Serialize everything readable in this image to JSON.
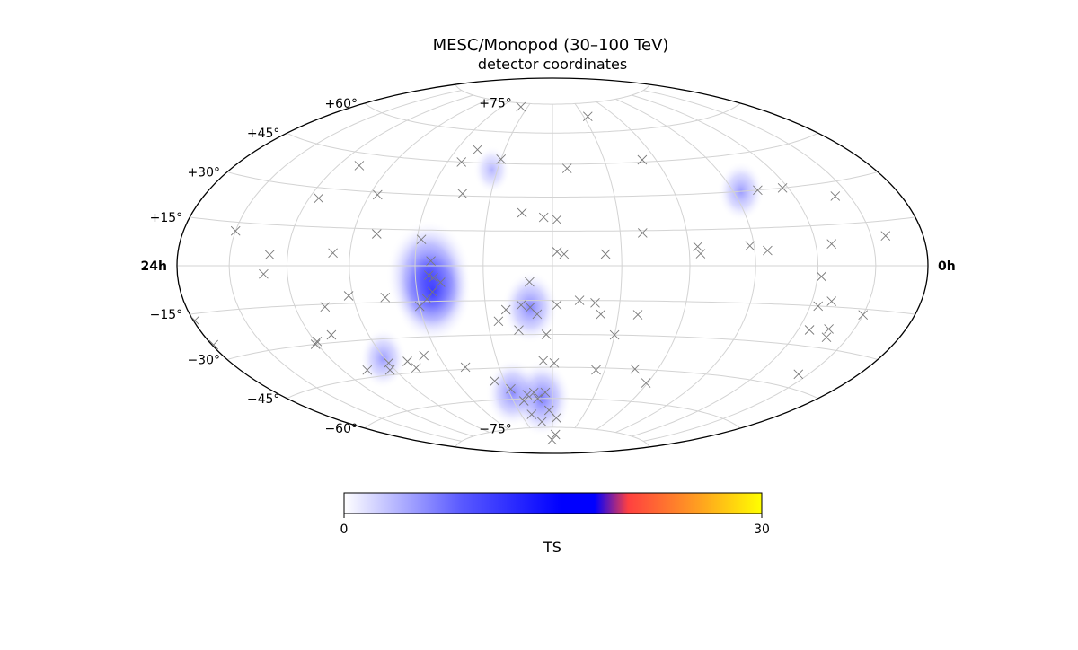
{
  "chart_data": {
    "type": "heatmap",
    "projection": "hammer-aitoff",
    "title": "MESC/Monopod (30–100 TeV)",
    "subtitle": "detector coordinates",
    "ra_labels": {
      "left": "24h",
      "right": "0h"
    },
    "dec_labels": [
      {
        "dec": 75,
        "text": "+75°"
      },
      {
        "dec": 60,
        "text": "+60°"
      },
      {
        "dec": 45,
        "text": "+45°"
      },
      {
        "dec": 30,
        "text": "+30°"
      },
      {
        "dec": 15,
        "text": "+15°"
      },
      {
        "dec": -15,
        "text": "−15°"
      },
      {
        "dec": -30,
        "text": "−30°"
      },
      {
        "dec": -45,
        "text": "−45°"
      },
      {
        "dec": -60,
        "text": "−60°"
      },
      {
        "dec": -75,
        "text": "−75°"
      }
    ],
    "grid": true,
    "colorbar": {
      "label": "TS",
      "min": 0,
      "max": 30,
      "tick_labels": [
        "0",
        "30"
      ],
      "colors": [
        "#ffffff",
        "#5a5aff",
        "#0000ff",
        "#ff4040",
        "#ffa020",
        "#ffff00"
      ]
    },
    "hotspots": [
      {
        "lon": 54,
        "lat": -4,
        "ts": 9.5
      },
      {
        "lon": 53,
        "lat": -11,
        "ts": 8.5
      },
      {
        "lon": 10,
        "lat": -18,
        "ts": 5
      },
      {
        "lon": 8,
        "lat": -60,
        "ts": 5.5
      },
      {
        "lon": 28,
        "lat": -57,
        "ts": 4.5
      },
      {
        "lon": 91,
        "lat": -38,
        "ts": 3.5
      },
      {
        "lon": -94,
        "lat": 30,
        "ts": 3.5
      },
      {
        "lon": 33,
        "lat": 42,
        "ts": 2
      }
    ],
    "events": [
      {
        "lon": 38,
        "lat": 73
      },
      {
        "lon": -34,
        "lat": 68
      },
      {
        "lon": 47,
        "lat": 51
      },
      {
        "lon": 30,
        "lat": 47
      },
      {
        "lon": 52,
        "lat": 45
      },
      {
        "lon": -8,
        "lat": 43
      },
      {
        "lon": -52,
        "lat": 46
      },
      {
        "lon": 108,
        "lat": 40
      },
      {
        "lon": 44,
        "lat": 31
      },
      {
        "lon": 86,
        "lat": 29
      },
      {
        "lon": 4,
        "lat": 21
      },
      {
        "lon": 14,
        "lat": 23
      },
      {
        "lon": -2,
        "lat": 20
      },
      {
        "lon": 115,
        "lat": 26
      },
      {
        "lon": 150,
        "lat": 12
      },
      {
        "lon": 79,
        "lat": 13
      },
      {
        "lon": 58,
        "lat": 11
      },
      {
        "lon": 129,
        "lat": 4
      },
      {
        "lon": 98,
        "lat": 5
      },
      {
        "lon": 53,
        "lat": 2
      },
      {
        "lon": -2,
        "lat": 6
      },
      {
        "lon": -5,
        "lat": 5
      },
      {
        "lon": -23,
        "lat": 5
      },
      {
        "lon": -40,
        "lat": 14
      },
      {
        "lon": -64,
        "lat": 8
      },
      {
        "lon": -65,
        "lat": 5
      },
      {
        "lon": -88,
        "lat": 8
      },
      {
        "lon": -96,
        "lat": 6
      },
      {
        "lon": -128,
        "lat": 8
      },
      {
        "lon": -158,
        "lat": 10
      },
      {
        "lon": -117,
        "lat": 30
      },
      {
        "lon": -103,
        "lat": 30
      },
      {
        "lon": -142,
        "lat": 25
      },
      {
        "lon": 132,
        "lat": -3
      },
      {
        "lon": 92,
        "lat": -12
      },
      {
        "lon": 75,
        "lat": -13
      },
      {
        "lon": 54,
        "lat": -4
      },
      {
        "lon": 52,
        "lat": -5
      },
      {
        "lon": 49,
        "lat": -7
      },
      {
        "lon": 53,
        "lat": -11
      },
      {
        "lon": 56,
        "lat": -14
      },
      {
        "lon": 60,
        "lat": -17
      },
      {
        "lon": 105,
        "lat": -16
      },
      {
        "lon": 179,
        "lat": -17
      },
      {
        "lon": 179,
        "lat": -25
      },
      {
        "lon": 10,
        "lat": -7
      },
      {
        "lon": 10,
        "lat": -18
      },
      {
        "lon": 7,
        "lat": -21
      },
      {
        "lon": 14,
        "lat": -17
      },
      {
        "lon": 21,
        "lat": -19
      },
      {
        "lon": 25,
        "lat": -24
      },
      {
        "lon": 16,
        "lat": -28
      },
      {
        "lon": -2,
        "lat": -17
      },
      {
        "lon": -12,
        "lat": -15
      },
      {
        "lon": -19,
        "lat": -16
      },
      {
        "lon": -30,
        "lat": -30
      },
      {
        "lon": 3,
        "lat": -30
      },
      {
        "lon": -22,
        "lat": -21
      },
      {
        "lon": -39,
        "lat": -21
      },
      {
        "lon": -122,
        "lat": -4
      },
      {
        "lon": -130,
        "lat": -13
      },
      {
        "lon": -124,
        "lat": -15
      },
      {
        "lon": -136,
        "lat": -23
      },
      {
        "lon": -138,
        "lat": -26
      },
      {
        "lon": -126,
        "lat": -24
      },
      {
        "lon": -150,
        "lat": -17
      },
      {
        "lon": -144,
        "lat": -40
      },
      {
        "lon": 109,
        "lat": -27
      },
      {
        "lon": 119,
        "lat": -29
      },
      {
        "lon": 121,
        "lat": -30
      },
      {
        "lon": 106,
        "lat": -42
      },
      {
        "lon": 90,
        "lat": -40
      },
      {
        "lon": 93,
        "lat": -43
      },
      {
        "lon": 77,
        "lat": -43
      },
      {
        "lon": 79,
        "lat": -40
      },
      {
        "lon": 68,
        "lat": -38
      },
      {
        "lon": 49,
        "lat": -44
      },
      {
        "lon": 36,
        "lat": -51
      },
      {
        "lon": 28,
        "lat": -55
      },
      {
        "lon": 13,
        "lat": -57
      },
      {
        "lon": 18,
        "lat": -58
      },
      {
        "lon": 5,
        "lat": -57
      },
      {
        "lon": 22,
        "lat": -61
      },
      {
        "lon": 11,
        "lat": -60
      },
      {
        "lon": 3,
        "lat": -66
      },
      {
        "lon": -4,
        "lat": -70
      },
      {
        "lon": -5,
        "lat": -79
      },
      {
        "lon": 1,
        "lat": -82
      },
      {
        "lon": 12,
        "lat": -72
      },
      {
        "lon": 20,
        "lat": -68
      },
      {
        "lon": 5,
        "lat": -42
      },
      {
        "lon": -1,
        "lat": -43
      },
      {
        "lon": -25,
        "lat": -46
      },
      {
        "lon": -47,
        "lat": -45
      },
      {
        "lon": -59,
        "lat": -51
      }
    ]
  }
}
